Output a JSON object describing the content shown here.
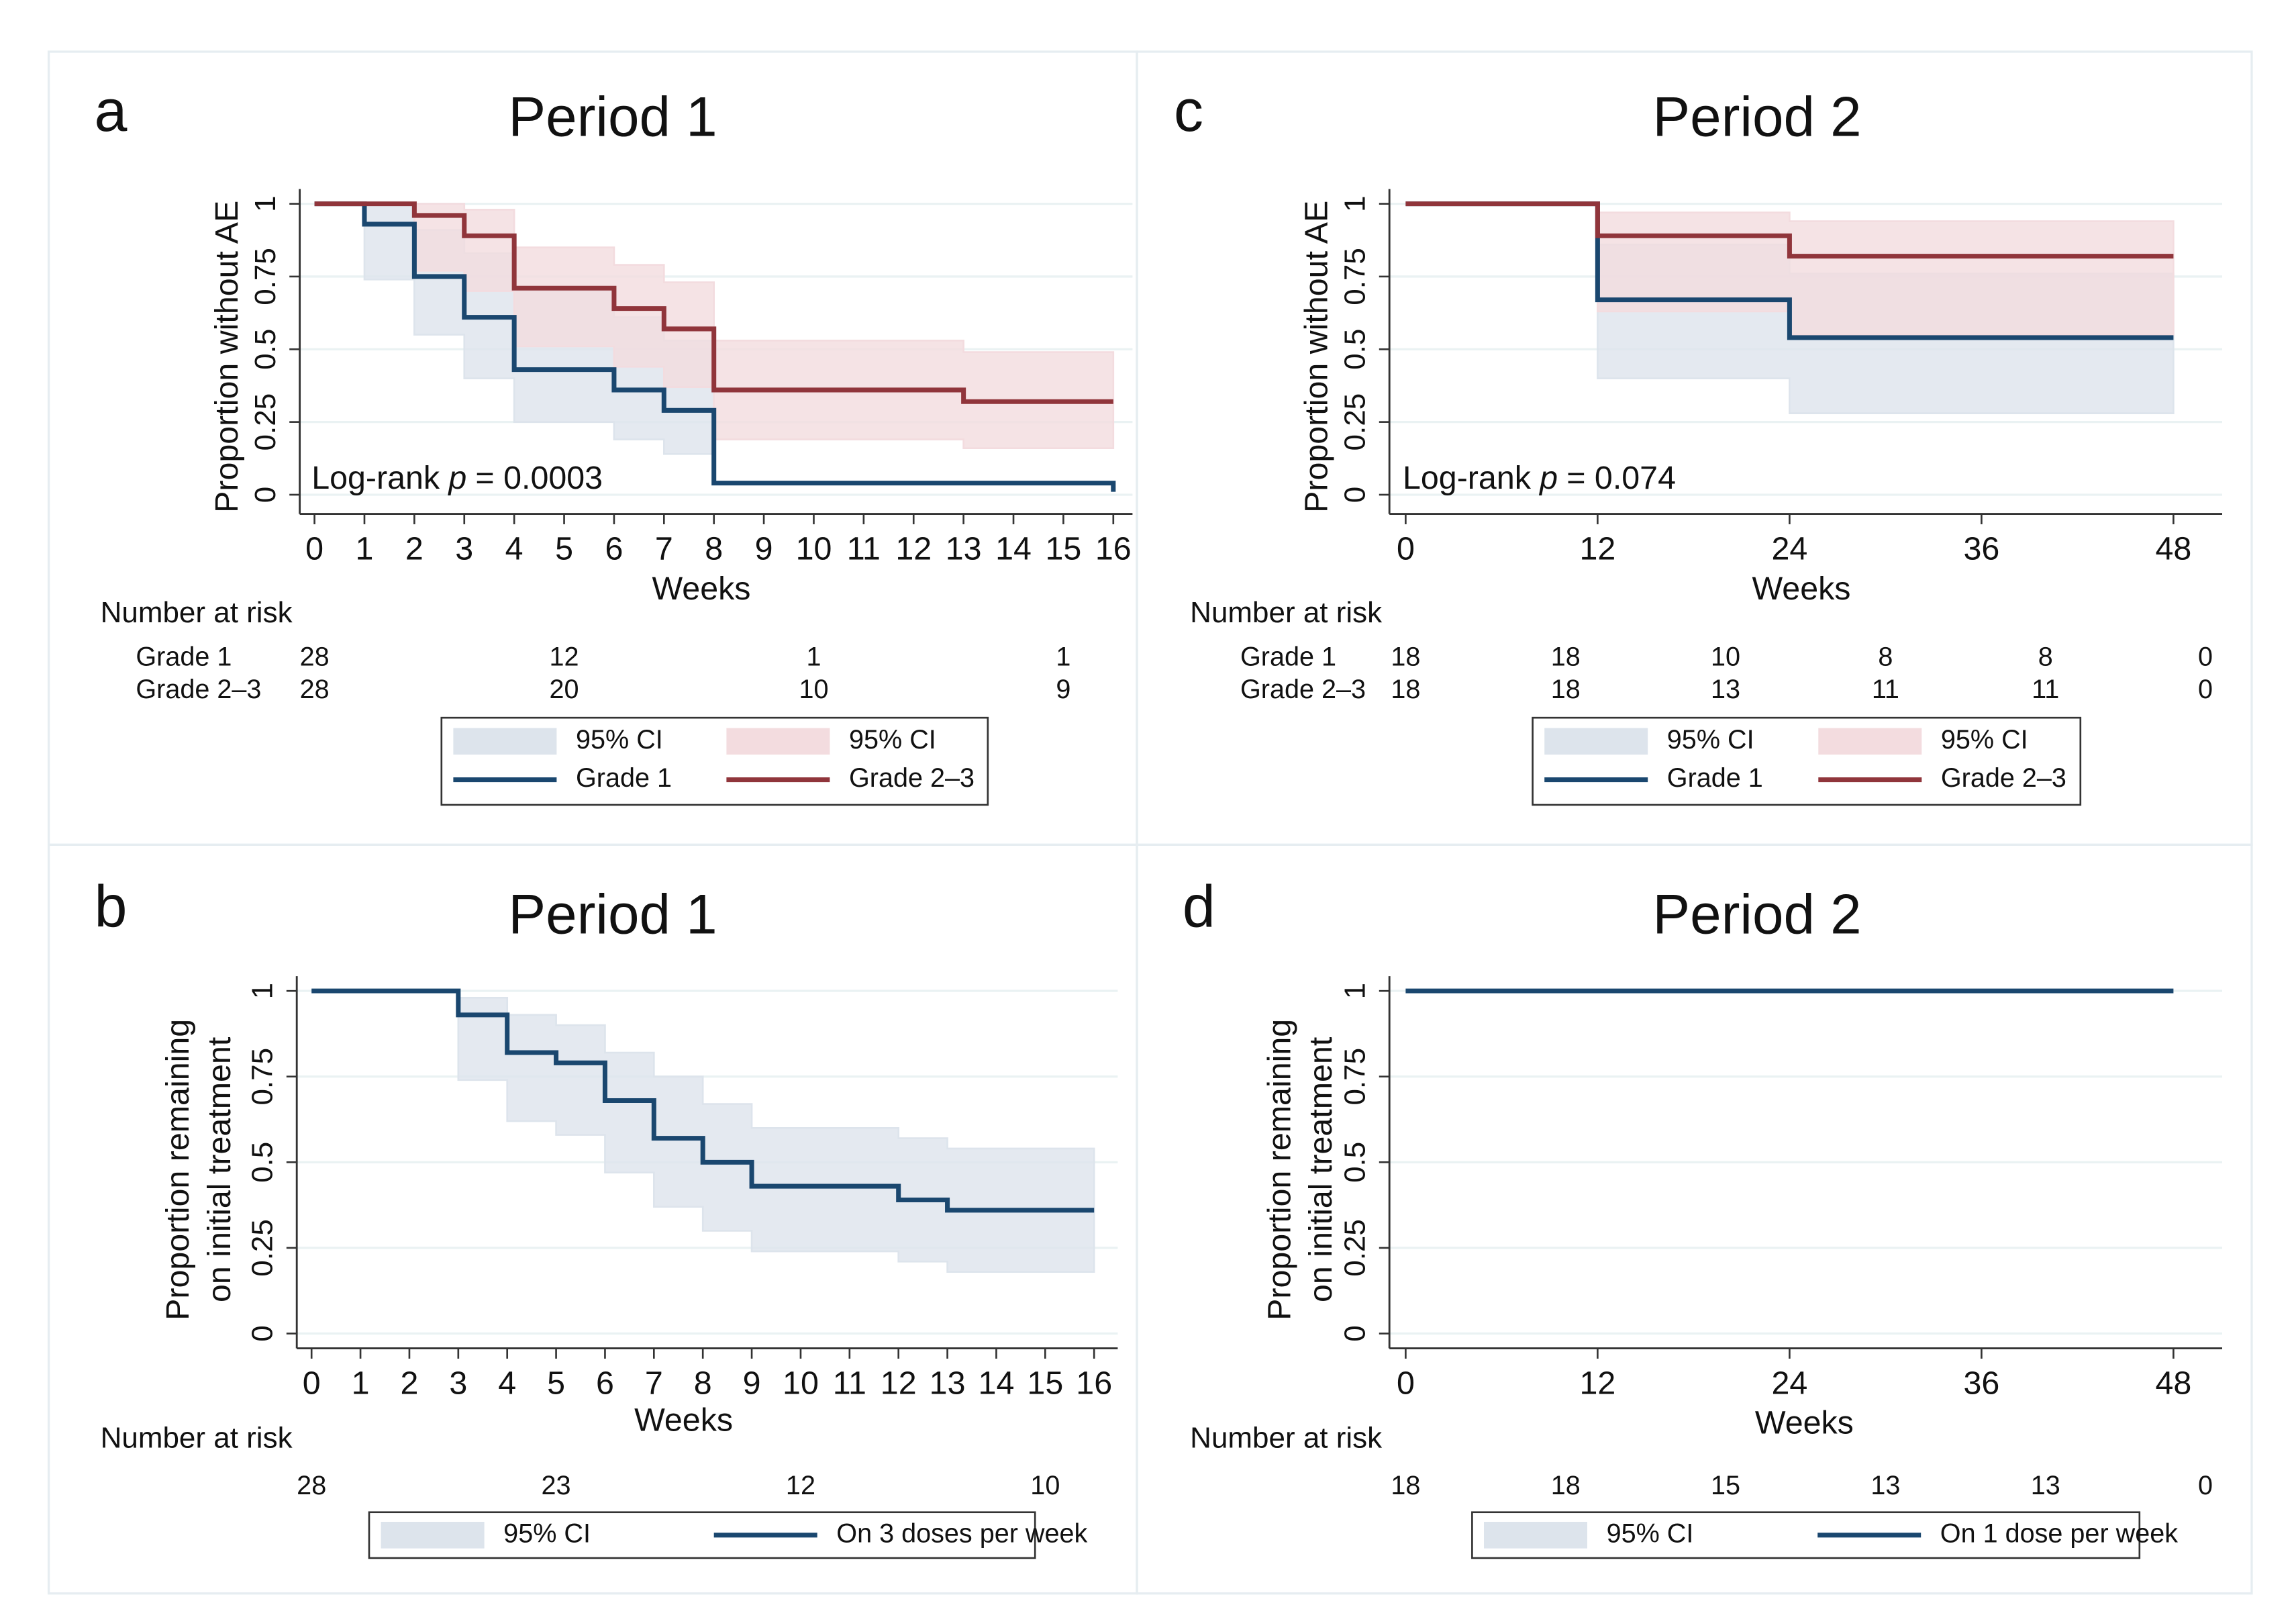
{
  "chart_data": [
    {
      "type": "step",
      "letter": "a",
      "title": "Period 1",
      "y_label": [
        "Proportion without AE"
      ],
      "x_label": "Weeks",
      "xlim": [
        0,
        16
      ],
      "xticks": [
        0,
        1,
        2,
        3,
        4,
        5,
        6,
        7,
        8,
        9,
        10,
        11,
        12,
        13,
        14,
        15,
        16
      ],
      "ylim": [
        0,
        1
      ],
      "yticks": [
        0,
        0.25,
        0.5,
        0.75,
        1
      ],
      "grid": true,
      "annotation": {
        "label": "Log-rank",
        "stat": "p",
        "value": "= 0.0003"
      },
      "series": [
        {
          "name": "Grade 1",
          "ci_name": "95% CI",
          "color": "#1a476f",
          "ci_color": "#dde4ec",
          "x": [
            0,
            1,
            2,
            3,
            4,
            6,
            7,
            8,
            16
          ],
          "values": [
            1,
            0.93,
            0.75,
            0.61,
            0.43,
            0.36,
            0.29,
            0.04,
            0.01
          ],
          "ci_lower": [
            1,
            0.74,
            0.55,
            0.4,
            0.25,
            0.19,
            0.14,
            0.04,
            0.01
          ],
          "ci_upper": [
            1,
            1,
            0.91,
            0.83,
            0.7,
            0.61,
            0.53,
            0.04,
            0.01
          ]
        },
        {
          "name": "Grade 2–3",
          "ci_name": "95% CI",
          "color": "#90353b",
          "ci_color": "#f3dcdf",
          "x": [
            0,
            2,
            3,
            4,
            6,
            7,
            8,
            13,
            16
          ],
          "values": [
            1,
            0.96,
            0.89,
            0.71,
            0.64,
            0.57,
            0.36,
            0.32,
            0.32
          ],
          "ci_lower": [
            1,
            0.77,
            0.7,
            0.51,
            0.44,
            0.37,
            0.19,
            0.16,
            0.16
          ],
          "ci_upper": [
            1,
            1,
            0.98,
            0.85,
            0.79,
            0.73,
            0.53,
            0.49,
            0.49
          ]
        }
      ],
      "at_risk": {
        "title": "Number at risk",
        "x": [
          0,
          5,
          10,
          15
        ],
        "rows": [
          {
            "label": "Grade 1",
            "values": [
              28,
              12,
              1,
              1
            ]
          },
          {
            "label": "Grade 2–3",
            "values": [
              28,
              20,
              10,
              9
            ]
          }
        ]
      }
    },
    {
      "type": "step",
      "letter": "c",
      "title": "Period 2",
      "y_label": [
        "Proportion without AE"
      ],
      "x_label": "Weeks",
      "xlim": [
        0,
        48
      ],
      "xticks": [
        0,
        12,
        24,
        36,
        48
      ],
      "ylim": [
        0,
        1
      ],
      "yticks": [
        0,
        0.25,
        0.5,
        0.75,
        1
      ],
      "grid": true,
      "annotation": {
        "label": "Log-rank",
        "stat": "p",
        "value": "= 0.074"
      },
      "series": [
        {
          "name": "Grade 1",
          "ci_name": "95% CI",
          "color": "#1a476f",
          "ci_color": "#dde4ec",
          "x": [
            0,
            12,
            24,
            48
          ],
          "values": [
            1,
            0.67,
            0.54,
            0.54
          ],
          "ci_lower": [
            1,
            0.4,
            0.28,
            0.28
          ],
          "ci_upper": [
            1,
            0.86,
            0.76,
            0.76
          ]
        },
        {
          "name": "Grade 2–3",
          "ci_name": "95% CI",
          "color": "#90353b",
          "ci_color": "#f3dcdf",
          "x": [
            0,
            12,
            24,
            48
          ],
          "values": [
            1,
            0.89,
            0.82,
            0.82
          ],
          "ci_lower": [
            1,
            0.63,
            0.55,
            0.55
          ],
          "ci_upper": [
            1,
            0.97,
            0.94,
            0.94
          ]
        }
      ],
      "at_risk": {
        "title": "Number at risk",
        "x": [
          0,
          10,
          20,
          30,
          40,
          50
        ],
        "rows": [
          {
            "label": "Grade 1",
            "values": [
              18,
              18,
              10,
              8,
              8,
              0
            ]
          },
          {
            "label": "Grade 2–3",
            "values": [
              18,
              18,
              13,
              11,
              11,
              0
            ]
          }
        ]
      }
    },
    {
      "type": "step",
      "letter": "b",
      "title": "Period 1",
      "y_label": [
        "Proportion remaining",
        "on initial treatment"
      ],
      "x_label": "Weeks",
      "xlim": [
        0,
        16
      ],
      "xticks": [
        0,
        1,
        2,
        3,
        4,
        5,
        6,
        7,
        8,
        9,
        10,
        11,
        12,
        13,
        14,
        15,
        16
      ],
      "ylim": [
        0,
        1
      ],
      "yticks": [
        0,
        0.25,
        0.5,
        0.75,
        1
      ],
      "grid": true,
      "series": [
        {
          "name": "On 3 doses per week",
          "ci_name": "95% CI",
          "color": "#1a476f",
          "ci_color": "#dde4ec",
          "x": [
            0,
            3,
            4,
            5,
            6,
            7,
            8,
            9,
            12,
            13,
            16
          ],
          "values": [
            1,
            0.93,
            0.82,
            0.79,
            0.68,
            0.57,
            0.5,
            0.43,
            0.39,
            0.36,
            0.36
          ],
          "ci_lower": [
            1,
            0.74,
            0.62,
            0.58,
            0.47,
            0.37,
            0.3,
            0.24,
            0.21,
            0.18,
            0.18
          ],
          "ci_upper": [
            1,
            0.98,
            0.93,
            0.9,
            0.82,
            0.75,
            0.67,
            0.6,
            0.57,
            0.54,
            0.54
          ]
        }
      ],
      "at_risk": {
        "title": "Number at risk",
        "x": [
          0,
          5,
          10,
          15
        ],
        "rows": [
          {
            "values": [
              28,
              23,
              12,
              10
            ]
          }
        ]
      }
    },
    {
      "type": "step",
      "letter": "d",
      "title": "Period 2",
      "y_label": [
        "Proportion remaining",
        "on initial treatment"
      ],
      "x_label": "Weeks",
      "xlim": [
        0,
        48
      ],
      "xticks": [
        0,
        12,
        24,
        36,
        48
      ],
      "ylim": [
        0,
        1
      ],
      "yticks": [
        0,
        0.25,
        0.5,
        0.75,
        1
      ],
      "grid": true,
      "series": [
        {
          "name": "On 1 dose per week",
          "ci_name": "95% CI",
          "color": "#1a476f",
          "ci_color": "#dde4ec",
          "x": [
            0,
            48
          ],
          "values": [
            1,
            1
          ],
          "ci_lower": [
            1,
            1
          ],
          "ci_upper": [
            1,
            1
          ]
        }
      ],
      "at_risk": {
        "title": "Number at risk",
        "x": [
          0,
          10,
          20,
          30,
          40,
          50
        ],
        "rows": [
          {
            "values": [
              18,
              18,
              15,
              13,
              13,
              0
            ]
          }
        ]
      }
    }
  ]
}
